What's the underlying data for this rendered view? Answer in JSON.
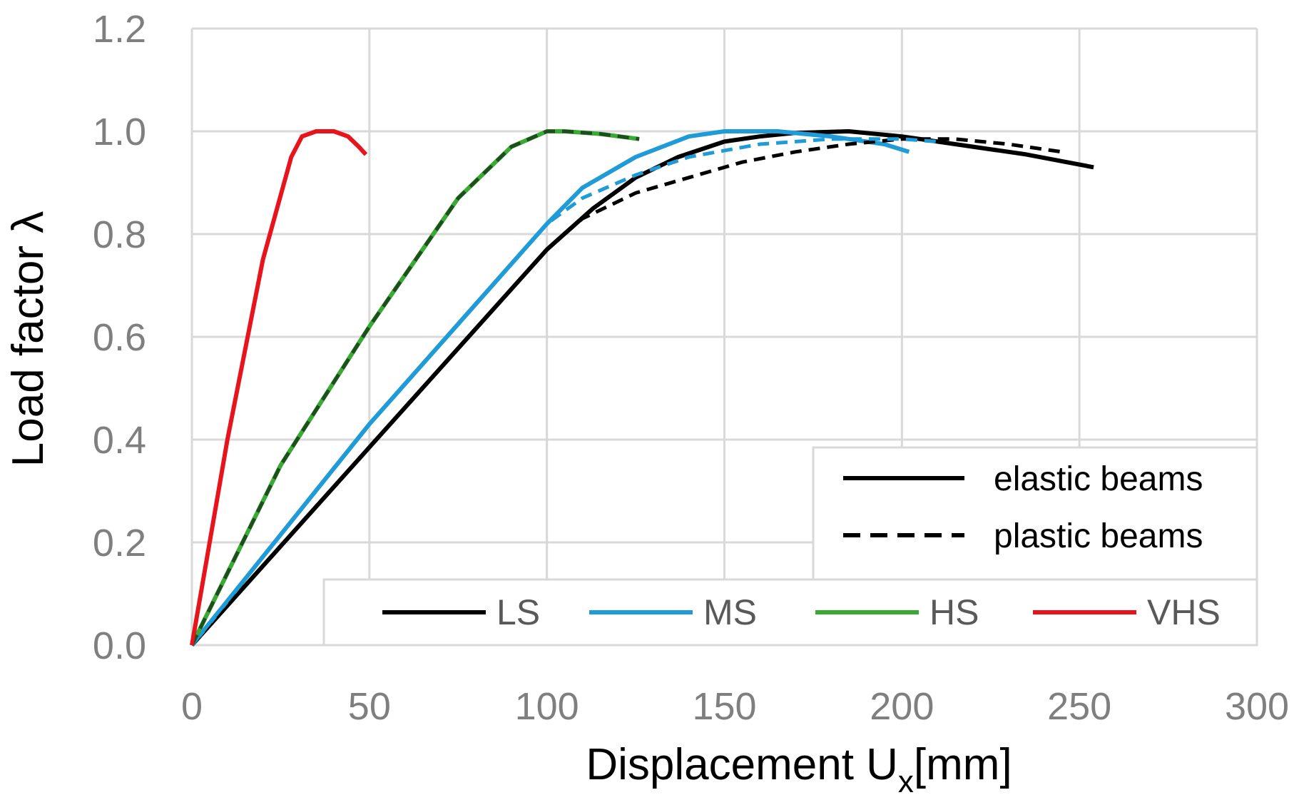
{
  "chart_data": {
    "type": "line",
    "xlabel": "Displacement U",
    "xlabel_subscript": "x",
    "xlabel_unit": "[mm]",
    "ylabel": "Load factor λ",
    "xlim": [
      0,
      300
    ],
    "ylim": [
      0,
      1.2
    ],
    "x_ticks": [
      "0",
      "50",
      "100",
      "150",
      "200",
      "250",
      "300"
    ],
    "y_ticks": [
      "0.0",
      "0.2",
      "0.4",
      "0.6",
      "0.8",
      "1.0",
      "1.2"
    ],
    "grid": true,
    "colors": {
      "LS": "#000000",
      "MS": "#1f9bd7",
      "HS": "#3aaa35",
      "VHS": "#e8141b",
      "HS_plastic": "#1e4d1e",
      "grid": "#d9d9d9"
    },
    "legend_style": {
      "position": "top-right",
      "entries": [
        {
          "label": "elastic beams",
          "dash": "solid"
        },
        {
          "label": "plastic beams",
          "dash": "dashed"
        }
      ]
    },
    "legend_series": {
      "position": "bottom-right",
      "entries": [
        "LS",
        "MS",
        "HS",
        "VHS"
      ]
    },
    "series": [
      {
        "name": "LS",
        "style": "elastic",
        "x": [
          0,
          50,
          100,
          113,
          125,
          137,
          150,
          160,
          170,
          185,
          200,
          210,
          220,
          235,
          254
        ],
        "y": [
          0,
          0.385,
          0.77,
          0.85,
          0.91,
          0.95,
          0.98,
          0.99,
          0.997,
          1.0,
          0.99,
          0.98,
          0.97,
          0.955,
          0.93
        ]
      },
      {
        "name": "LS",
        "style": "plastic",
        "x": [
          0,
          50,
          100,
          110,
          125,
          140,
          155,
          170,
          185,
          200,
          215,
          230,
          245
        ],
        "y": [
          0,
          0.385,
          0.77,
          0.83,
          0.88,
          0.91,
          0.94,
          0.96,
          0.975,
          0.985,
          0.985,
          0.975,
          0.96
        ]
      },
      {
        "name": "MS",
        "style": "elastic",
        "x": [
          0,
          50,
          100,
          110,
          125,
          140,
          150,
          165,
          180,
          195,
          202
        ],
        "y": [
          0,
          0.43,
          0.82,
          0.89,
          0.95,
          0.99,
          1.0,
          1.0,
          0.99,
          0.975,
          0.96
        ]
      },
      {
        "name": "MS",
        "style": "plastic",
        "x": [
          0,
          50,
          100,
          110,
          125,
          140,
          160,
          180,
          200,
          210
        ],
        "y": [
          0,
          0.43,
          0.82,
          0.87,
          0.915,
          0.95,
          0.975,
          0.985,
          0.985,
          0.98
        ]
      },
      {
        "name": "HS",
        "style": "elastic",
        "x": [
          0,
          25,
          50,
          75,
          90,
          100,
          105,
          115,
          126
        ],
        "y": [
          0,
          0.35,
          0.62,
          0.87,
          0.97,
          1.0,
          1.0,
          0.995,
          0.985
        ]
      },
      {
        "name": "HS",
        "style": "plastic",
        "x": [
          0,
          25,
          50,
          75,
          90,
          100,
          105,
          115,
          126
        ],
        "y": [
          0,
          0.35,
          0.62,
          0.87,
          0.97,
          1.0,
          1.0,
          0.995,
          0.985
        ]
      },
      {
        "name": "VHS",
        "style": "elastic",
        "x": [
          0,
          10,
          20,
          28,
          31,
          35,
          40,
          44,
          47,
          49
        ],
        "y": [
          0,
          0.4,
          0.75,
          0.95,
          0.99,
          1.0,
          1.0,
          0.99,
          0.97,
          0.955
        ]
      },
      {
        "name": "VHS",
        "style": "plastic",
        "x": [
          0,
          10,
          20,
          28,
          31,
          35,
          40,
          44,
          47,
          49
        ],
        "y": [
          0,
          0.4,
          0.75,
          0.95,
          0.99,
          1.0,
          1.0,
          0.99,
          0.97,
          0.955
        ]
      }
    ]
  }
}
